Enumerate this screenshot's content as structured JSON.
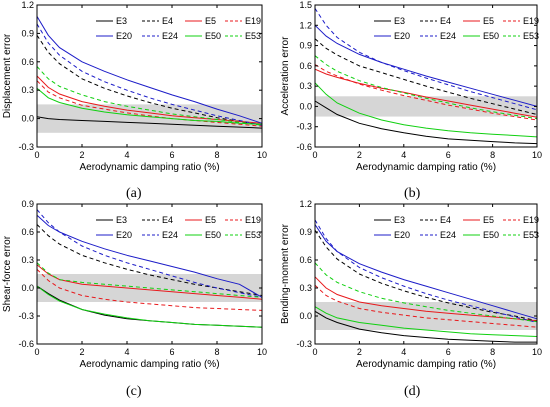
{
  "chart_data": [
    {
      "type": "line",
      "panel_label": "(a)",
      "xlabel": "Aerodynamic damping ratio (%)",
      "ylabel": "Displacement error",
      "xlim": [
        0,
        10
      ],
      "ylim": [
        -0.3,
        1.2
      ],
      "xticks": [
        "0",
        "2",
        "4",
        "6",
        "8",
        "10"
      ],
      "yticks": [
        "-0.3",
        "0.0",
        "0.3",
        "0.6",
        "0.9",
        "1.2"
      ],
      "band": [
        -0.15,
        0.15
      ],
      "legend_placement": "top-right",
      "x": [
        0,
        0.5,
        1,
        2,
        3,
        4,
        5,
        6,
        7,
        8,
        9,
        10
      ],
      "series": [
        {
          "name": "E3",
          "color": "#000000",
          "dash": "solid",
          "values": [
            0.02,
            0.0,
            -0.01,
            -0.02,
            -0.03,
            -0.04,
            -0.05,
            -0.06,
            -0.07,
            -0.08,
            -0.09,
            -0.1
          ]
        },
        {
          "name": "E4",
          "color": "#000000",
          "dash": "dashed",
          "values": [
            0.88,
            0.7,
            0.58,
            0.42,
            0.32,
            0.24,
            0.17,
            0.11,
            0.06,
            0.01,
            -0.03,
            -0.07
          ]
        },
        {
          "name": "E5",
          "color": "#e8191c",
          "dash": "solid",
          "values": [
            0.45,
            0.33,
            0.26,
            0.18,
            0.13,
            0.09,
            0.06,
            0.03,
            0.01,
            -0.01,
            -0.03,
            -0.05
          ]
        },
        {
          "name": "E19",
          "color": "#e8191c",
          "dash": "dashed",
          "values": [
            0.4,
            0.28,
            0.22,
            0.14,
            0.1,
            0.06,
            0.03,
            0.0,
            -0.02,
            -0.04,
            -0.06,
            -0.08
          ]
        },
        {
          "name": "E20",
          "color": "#1c1cc8",
          "dash": "solid",
          "values": [
            1.08,
            0.88,
            0.75,
            0.6,
            0.5,
            0.41,
            0.33,
            0.25,
            0.18,
            0.1,
            0.03,
            -0.05
          ]
        },
        {
          "name": "E24",
          "color": "#1c1cc8",
          "dash": "dashed",
          "values": [
            1.0,
            0.8,
            0.67,
            0.5,
            0.39,
            0.3,
            0.22,
            0.15,
            0.09,
            0.03,
            -0.02,
            -0.07
          ]
        },
        {
          "name": "E50",
          "color": "#10d010",
          "dash": "solid",
          "values": [
            0.32,
            0.22,
            0.17,
            0.11,
            0.07,
            0.04,
            0.02,
            0.0,
            -0.02,
            -0.03,
            -0.05,
            -0.06
          ]
        },
        {
          "name": "E53",
          "color": "#10d010",
          "dash": "dashed",
          "values": [
            0.55,
            0.42,
            0.34,
            0.25,
            0.18,
            0.13,
            0.09,
            0.05,
            0.02,
            -0.01,
            -0.04,
            -0.07
          ]
        }
      ]
    },
    {
      "type": "line",
      "panel_label": "(b)",
      "xlabel": "Aerodynamic damping ratio (%)",
      "ylabel": "Acceleration error",
      "xlim": [
        0,
        10
      ],
      "ylim": [
        -0.6,
        1.5
      ],
      "xticks": [
        "0",
        "2",
        "4",
        "6",
        "8",
        "10"
      ],
      "yticks": [
        "-0.6",
        "-0.3",
        "0.0",
        "0.3",
        "0.6",
        "0.9",
        "1.2",
        "1.5"
      ],
      "band": [
        -0.15,
        0.15
      ],
      "legend_placement": "top-right",
      "x": [
        0,
        0.5,
        1,
        2,
        3,
        4,
        5,
        6,
        7,
        8,
        9,
        10
      ],
      "series": [
        {
          "name": "E3",
          "color": "#000000",
          "dash": "solid",
          "values": [
            0.08,
            -0.02,
            -0.12,
            -0.25,
            -0.33,
            -0.39,
            -0.44,
            -0.48,
            -0.5,
            -0.52,
            -0.54,
            -0.55
          ]
        },
        {
          "name": "E4",
          "color": "#000000",
          "dash": "dashed",
          "values": [
            1.0,
            0.86,
            0.76,
            0.6,
            0.5,
            0.4,
            0.3,
            0.21,
            0.12,
            0.04,
            -0.04,
            -0.12
          ]
        },
        {
          "name": "E5",
          "color": "#e8191c",
          "dash": "solid",
          "values": [
            0.55,
            0.48,
            0.43,
            0.34,
            0.27,
            0.21,
            0.14,
            0.08,
            0.02,
            -0.04,
            -0.1,
            -0.16
          ]
        },
        {
          "name": "E19",
          "color": "#e8191c",
          "dash": "dashed",
          "values": [
            0.62,
            0.52,
            0.45,
            0.33,
            0.24,
            0.16,
            0.09,
            0.02,
            -0.04,
            -0.1,
            -0.15,
            -0.2
          ]
        },
        {
          "name": "E20",
          "color": "#1c1cc8",
          "dash": "solid",
          "values": [
            1.2,
            1.04,
            0.93,
            0.77,
            0.65,
            0.55,
            0.45,
            0.36,
            0.27,
            0.18,
            0.09,
            0.0
          ]
        },
        {
          "name": "E24",
          "color": "#1c1cc8",
          "dash": "dashed",
          "values": [
            1.45,
            1.2,
            1.02,
            0.8,
            0.65,
            0.53,
            0.42,
            0.32,
            0.22,
            0.13,
            0.04,
            -0.05
          ]
        },
        {
          "name": "E50",
          "color": "#10d010",
          "dash": "solid",
          "values": [
            0.35,
            0.18,
            0.05,
            -0.1,
            -0.2,
            -0.27,
            -0.32,
            -0.36,
            -0.39,
            -0.41,
            -0.43,
            -0.45
          ]
        },
        {
          "name": "E53",
          "color": "#10d010",
          "dash": "dashed",
          "values": [
            0.75,
            0.62,
            0.52,
            0.38,
            0.28,
            0.2,
            0.12,
            0.05,
            -0.02,
            -0.08,
            -0.13,
            -0.18
          ]
        }
      ]
    },
    {
      "type": "line",
      "panel_label": "(c)",
      "xlabel": "Aerodynamic damping ratio (%)",
      "ylabel": "Shear-force error",
      "xlim": [
        0,
        10
      ],
      "ylim": [
        -0.6,
        0.9
      ],
      "xticks": [
        "0",
        "2",
        "4",
        "6",
        "8",
        "10"
      ],
      "yticks": [
        "-0.6",
        "-0.3",
        "0.0",
        "0.3",
        "0.6",
        "0.9"
      ],
      "band": [
        -0.15,
        0.15
      ],
      "legend_placement": "top-right",
      "x": [
        0,
        0.5,
        1,
        2,
        3,
        4,
        5,
        6,
        7,
        8,
        9,
        10
      ],
      "series": [
        {
          "name": "E3",
          "color": "#000000",
          "dash": "solid",
          "values": [
            0.02,
            -0.06,
            -0.13,
            -0.23,
            -0.29,
            -0.33,
            -0.35,
            -0.37,
            -0.39,
            -0.4,
            -0.41,
            -0.42
          ]
        },
        {
          "name": "E4",
          "color": "#000000",
          "dash": "dashed",
          "values": [
            0.68,
            0.56,
            0.47,
            0.35,
            0.27,
            0.2,
            0.14,
            0.09,
            0.04,
            0.0,
            -0.04,
            -0.08
          ]
        },
        {
          "name": "E5",
          "color": "#e8191c",
          "dash": "solid",
          "values": [
            0.25,
            0.15,
            0.09,
            0.04,
            0.02,
            0.0,
            -0.02,
            -0.04,
            -0.06,
            -0.08,
            -0.1,
            -0.12
          ]
        },
        {
          "name": "E19",
          "color": "#e8191c",
          "dash": "dashed",
          "values": [
            0.2,
            0.08,
            0.0,
            -0.08,
            -0.12,
            -0.15,
            -0.17,
            -0.19,
            -0.21,
            -0.22,
            -0.23,
            -0.24
          ]
        },
        {
          "name": "E20",
          "color": "#1c1cc8",
          "dash": "solid",
          "values": [
            0.78,
            0.67,
            0.6,
            0.5,
            0.42,
            0.35,
            0.29,
            0.23,
            0.17,
            0.1,
            0.04,
            -0.1
          ]
        },
        {
          "name": "E24",
          "color": "#1c1cc8",
          "dash": "dashed",
          "values": [
            0.84,
            0.7,
            0.6,
            0.45,
            0.35,
            0.27,
            0.2,
            0.13,
            0.06,
            0.0,
            -0.05,
            -0.1
          ]
        },
        {
          "name": "E50",
          "color": "#10d010",
          "dash": "solid",
          "values": [
            0.02,
            -0.07,
            -0.14,
            -0.23,
            -0.28,
            -0.32,
            -0.35,
            -0.37,
            -0.39,
            -0.4,
            -0.41,
            -0.42
          ]
        },
        {
          "name": "E53",
          "color": "#10d010",
          "dash": "dashed",
          "values": [
            0.27,
            0.16,
            0.09,
            0.06,
            0.04,
            0.02,
            0.0,
            -0.02,
            -0.04,
            -0.06,
            -0.08,
            -0.1
          ]
        }
      ]
    },
    {
      "type": "line",
      "panel_label": "(d)",
      "xlabel": "Aerodynamic damping ratio (%)",
      "ylabel": "Bending-moment error",
      "xlim": [
        0,
        10
      ],
      "ylim": [
        -0.3,
        1.2
      ],
      "xticks": [
        "0",
        "2",
        "4",
        "6",
        "8",
        "10"
      ],
      "yticks": [
        "-0.3",
        "0.0",
        "0.3",
        "0.6",
        "0.9",
        "1.2"
      ],
      "band": [
        -0.15,
        0.15
      ],
      "legend_placement": "top-right",
      "x": [
        0,
        0.5,
        1,
        2,
        3,
        4,
        5,
        6,
        7,
        8,
        9,
        10
      ],
      "series": [
        {
          "name": "E3",
          "color": "#000000",
          "dash": "solid",
          "values": [
            0.05,
            -0.02,
            -0.07,
            -0.14,
            -0.18,
            -0.21,
            -0.23,
            -0.25,
            -0.26,
            -0.27,
            -0.28,
            -0.28
          ]
        },
        {
          "name": "E4",
          "color": "#000000",
          "dash": "dashed",
          "values": [
            0.92,
            0.74,
            0.61,
            0.45,
            0.35,
            0.27,
            0.2,
            0.14,
            0.09,
            0.04,
            0.0,
            -0.05
          ]
        },
        {
          "name": "E5",
          "color": "#e8191c",
          "dash": "solid",
          "values": [
            0.42,
            0.3,
            0.23,
            0.15,
            0.11,
            0.08,
            0.05,
            0.03,
            0.01,
            -0.01,
            -0.03,
            -0.05
          ]
        },
        {
          "name": "E19",
          "color": "#e8191c",
          "dash": "dashed",
          "values": [
            0.33,
            0.22,
            0.16,
            0.08,
            0.04,
            0.01,
            -0.02,
            -0.04,
            -0.06,
            -0.08,
            -0.1,
            -0.12
          ]
        },
        {
          "name": "E20",
          "color": "#1c1cc8",
          "dash": "solid",
          "values": [
            0.98,
            0.8,
            0.69,
            0.56,
            0.47,
            0.39,
            0.32,
            0.25,
            0.18,
            0.11,
            0.04,
            -0.03
          ]
        },
        {
          "name": "E24",
          "color": "#1c1cc8",
          "dash": "dashed",
          "values": [
            1.03,
            0.83,
            0.69,
            0.52,
            0.41,
            0.32,
            0.24,
            0.17,
            0.11,
            0.05,
            -0.01,
            -0.07
          ]
        },
        {
          "name": "E50",
          "color": "#10d010",
          "dash": "solid",
          "values": [
            0.1,
            0.03,
            -0.02,
            -0.07,
            -0.1,
            -0.13,
            -0.15,
            -0.17,
            -0.19,
            -0.2,
            -0.21,
            -0.22
          ]
        },
        {
          "name": "E53",
          "color": "#10d010",
          "dash": "dashed",
          "values": [
            0.57,
            0.44,
            0.36,
            0.26,
            0.19,
            0.14,
            0.1,
            0.06,
            0.03,
            0.0,
            -0.03,
            -0.06
          ]
        }
      ]
    }
  ]
}
